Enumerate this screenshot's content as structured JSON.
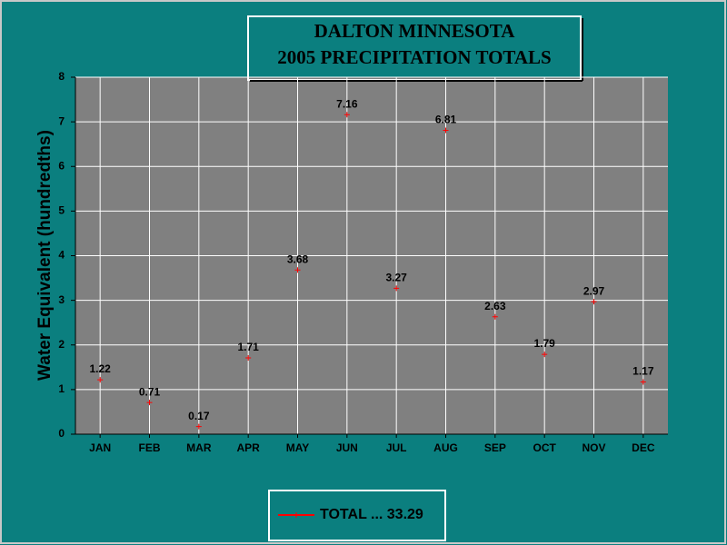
{
  "chart_data": {
    "type": "line",
    "title": [
      "DALTON MINNESOTA",
      "2005 PRECIPITATION TOTALS"
    ],
    "y_label": "Water Equivalent (hundredths)",
    "categories": [
      "JAN",
      "FEB",
      "MAR",
      "APR",
      "MAY",
      "JUN",
      "JUL",
      "AUG",
      "SEP",
      "OCT",
      "NOV",
      "DEC"
    ],
    "series": [
      {
        "name": "TOTAL ... 33.29",
        "color": "#ff0000",
        "values": [
          1.22,
          0.71,
          0.17,
          1.71,
          3.68,
          7.16,
          3.27,
          6.81,
          2.63,
          1.79,
          2.97,
          1.17
        ]
      }
    ],
    "ylim": [
      0,
      8
    ],
    "yticks": [
      0,
      1,
      2,
      3,
      4,
      5,
      6,
      7,
      8
    ],
    "grid": true,
    "data_labels": true
  }
}
